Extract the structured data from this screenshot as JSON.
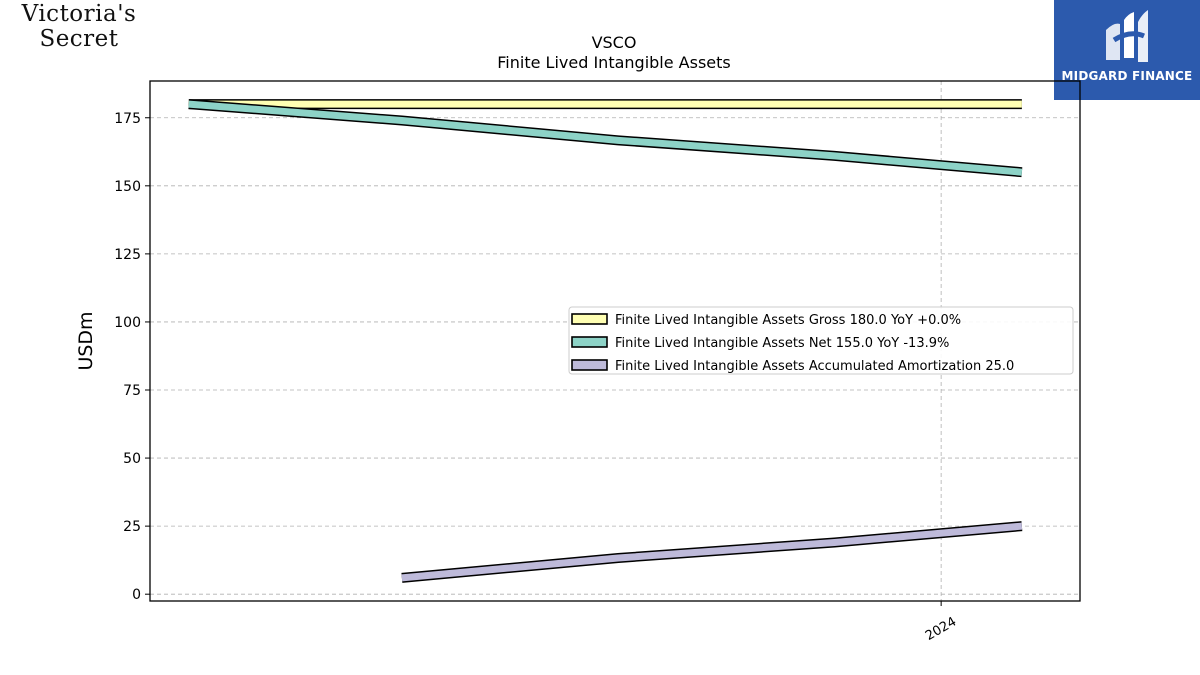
{
  "logos": {
    "left_line1": "Victoria's",
    "left_line2": "Secret",
    "right_text": "MIDGARD FINANCE"
  },
  "chart_data": {
    "type": "line",
    "title": "VSCO",
    "subtitle": "Finite Lived Intangible Assets",
    "ylabel": "USDm",
    "xlabel": "",
    "ylim": [
      -2.5,
      188.5
    ],
    "yticks": [
      0,
      25,
      50,
      75,
      100,
      125,
      150,
      175
    ],
    "xlim": [
      2021.55,
      2024.43
    ],
    "xticks": [
      {
        "value": 2024.0,
        "label": "2024"
      }
    ],
    "grid": true,
    "legend_position": "center-right",
    "series": [
      {
        "name": "Finite Lived Intangible Assets Gross  180.0 YoY +0.0%",
        "color": "#ffffb3",
        "x": [
          2021.67,
          2022.0,
          2022.33,
          2022.67,
          2023.0,
          2023.33,
          2023.67,
          2024.0,
          2024.25
        ],
        "y": [
          180.0,
          180.0,
          180.0,
          180.0,
          180.0,
          180.0,
          180.0,
          180.0,
          180.0
        ]
      },
      {
        "name": "Finite Lived Intangible Assets Net  155.0 YoY -13.9%",
        "color": "#8dd3c7",
        "x": [
          2021.67,
          2022.33,
          2023.0,
          2023.67,
          2024.25
        ],
        "y": [
          180.0,
          174.0,
          166.7,
          161.0,
          155.0
        ]
      },
      {
        "name": "Finite Lived Intangible Assets Accumulated Amortization  25.0",
        "color": "#bebada",
        "x": [
          2022.33,
          2023.0,
          2023.67,
          2024.25
        ],
        "y": [
          6.0,
          13.3,
          19.0,
          25.0
        ]
      }
    ]
  }
}
